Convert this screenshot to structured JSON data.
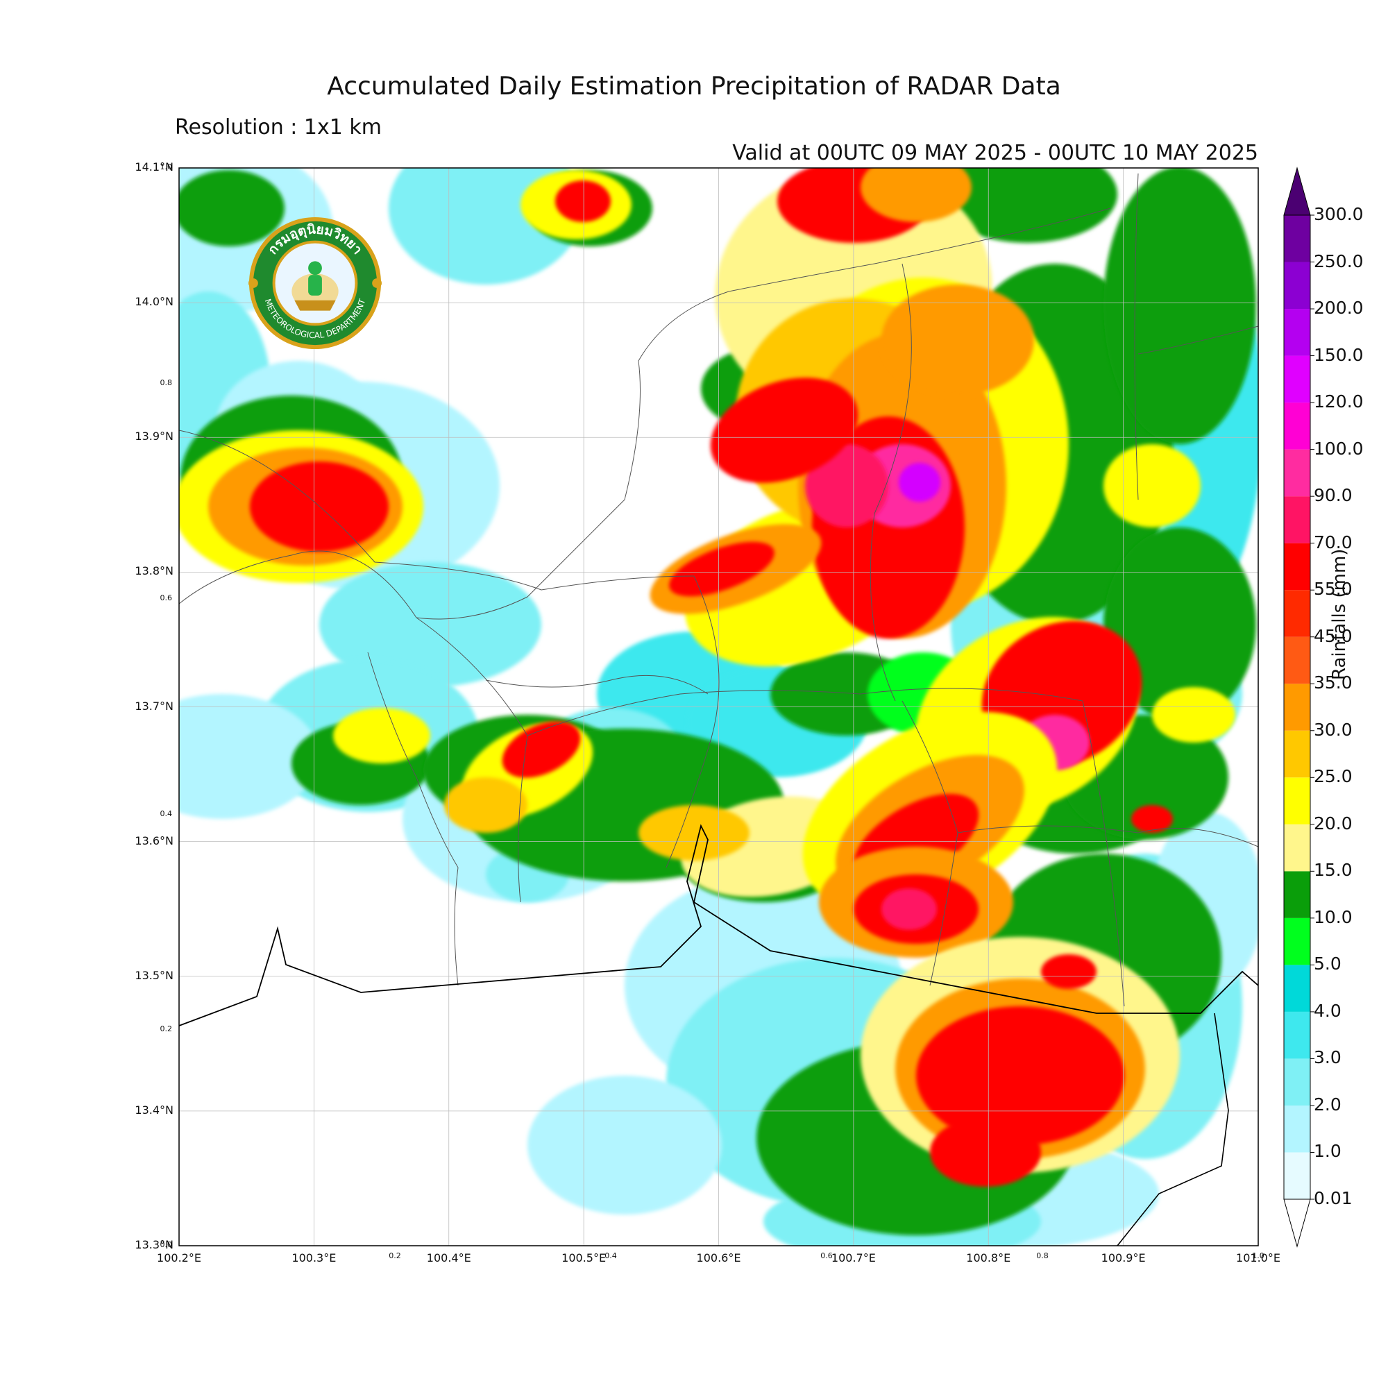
{
  "header": {
    "title": "Accumulated Daily Estimation Precipitation of RADAR Data",
    "resolution": "Resolution : 1x1 km",
    "valid": "Valid at 00UTC 09 MAY 2025 - 00UTC 10 MAY 2025"
  },
  "logo": {
    "arc_text_top": "กรมอุตุนิยมวิทยา",
    "arc_text_bottom": "METEOROLOGICAL DEPARTMENT",
    "colors": {
      "ring": "#1f8a2e",
      "gold": "#d9a21b",
      "inner": "#ffffff"
    }
  },
  "map": {
    "lat_labels": [
      "14.1°N",
      "14.0°N",
      "13.9°N",
      "13.8°N",
      "13.7°N",
      "13.6°N",
      "13.5°N",
      "13.4°N",
      "13.3°N"
    ],
    "lon_labels": [
      "100.2°E",
      "100.3°E",
      "100.4°E",
      "100.5°E",
      "100.6°E",
      "100.7°E",
      "100.8°E",
      "100.9°E",
      "101.0°E"
    ],
    "inner_y_ticks": [
      "1.0",
      "0.8",
      "0.6",
      "0.4",
      "0.2",
      "0.0"
    ],
    "inner_x_ticks": [
      "0.2",
      "0.4",
      "0.6",
      "0.8",
      "1.0"
    ],
    "lat_range": [
      13.3,
      14.1
    ],
    "lon_range": [
      100.2,
      101.0
    ],
    "gridlines": true
  },
  "colorbar": {
    "title": "Rainfalls (mm)",
    "levels": [
      "0.01",
      "1.0",
      "2.0",
      "3.0",
      "4.0",
      "5.0",
      "10.0",
      "15.0",
      "20.0",
      "25.0",
      "30.0",
      "35.0",
      "45.0",
      "55.0",
      "70.0",
      "90.0",
      "100.0",
      "120.0",
      "150.0",
      "200.0",
      "250.0",
      "300.0"
    ],
    "colors": [
      "#e6fbff",
      "#b3f5ff",
      "#7ff0f5",
      "#3ee8ee",
      "#00d9d9",
      "#00ff1e",
      "#0a9e0a",
      "#fff68c",
      "#ffff00",
      "#ffc800",
      "#ff9a00",
      "#ff5a14",
      "#ff2a00",
      "#ff0000",
      "#ff1464",
      "#ff2ca0",
      "#ff00d4",
      "#e000ff",
      "#b400f0",
      "#8c00d2",
      "#6e00a0"
    ]
  },
  "field_colors": {
    "light": "#e6fbff",
    "cyan1": "#b3f5ff",
    "cyan2": "#7ff0f5",
    "cyan3": "#3ee8ee",
    "lime": "#00ff1e",
    "green": "#0a9e0a",
    "lyellow": "#fff68c",
    "yellow": "#ffff00",
    "gold": "#ffc800",
    "orange": "#ff9a00",
    "redorange": "#ff5a14",
    "red": "#ff0000",
    "pinkred": "#ff1464",
    "magenta": "#ff2ca0",
    "purple": "#d400ff"
  }
}
